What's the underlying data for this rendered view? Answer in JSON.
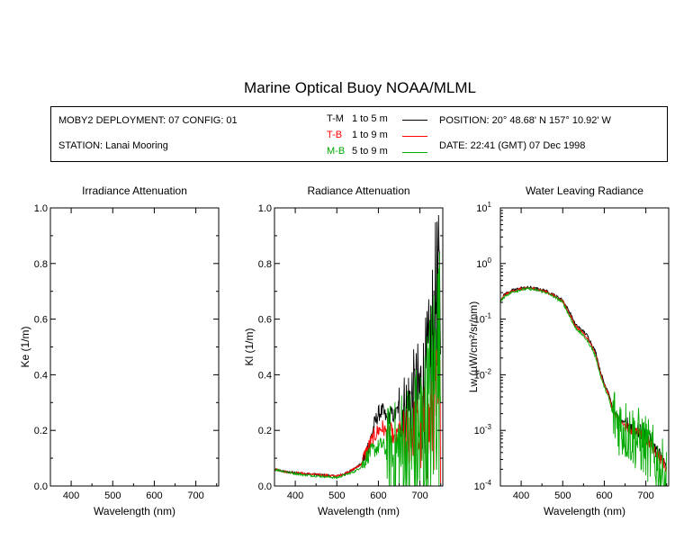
{
  "title": "Marine Optical Buoy NOAA/MLML",
  "info": {
    "deployment": "MOBY2 DEPLOYMENT: 07 CONFIG: 01",
    "station": "STATION: Lanai Mooring",
    "position": "POSITION: 20° 48.68' N   157° 10.92' W",
    "date": "DATE: 22:41 (GMT) 07 Dec 1998",
    "legend": [
      {
        "code": "T-M",
        "range": "1 to 5  m",
        "color": "#000000"
      },
      {
        "code": "T-B",
        "range": "1 to 9  m",
        "color": "#ff0000"
      },
      {
        "code": "M-B",
        "range": "5 to 9  m",
        "color": "#00aa00"
      }
    ]
  },
  "chart_data": [
    {
      "type": "line",
      "title": "Irradiance Attenuation",
      "xlabel": "Wavelength (nm)",
      "ylabel": "Ke  (1/m)",
      "xlim": [
        350,
        755
      ],
      "ylim": [
        0,
        1
      ],
      "xticks": [
        400,
        500,
        600,
        700
      ],
      "yticks": [
        0.0,
        0.2,
        0.4,
        0.6,
        0.8,
        1.0
      ],
      "ytick_labels": [
        "0.0",
        "0.2",
        "0.4",
        "0.6",
        "0.8",
        "1.0"
      ],
      "series": []
    },
    {
      "type": "line",
      "title": "Radiance Attenuation",
      "xlabel": "Wavelength (nm)",
      "ylabel": "Kl  (1/m)",
      "xlim": [
        350,
        755
      ],
      "ylim": [
        0,
        1
      ],
      "xticks": [
        400,
        500,
        600,
        700
      ],
      "yticks": [
        0.0,
        0.2,
        0.4,
        0.6,
        0.8,
        1.0
      ],
      "ytick_labels": [
        "0.0",
        "0.2",
        "0.4",
        "0.6",
        "0.8",
        "1.0"
      ],
      "series": [
        {
          "name": "T-M",
          "color": "#000000",
          "x": [
            350,
            380,
            420,
            460,
            500,
            520,
            540,
            560,
            570,
            580,
            590,
            600,
            610,
            620,
            630,
            640,
            650,
            660,
            670,
            680,
            690,
            700,
            710,
            720,
            730,
            740,
            750
          ],
          "y": [
            0.06,
            0.05,
            0.045,
            0.04,
            0.035,
            0.045,
            0.06,
            0.08,
            0.12,
            0.16,
            0.22,
            0.26,
            0.27,
            0.24,
            0.26,
            0.25,
            0.29,
            0.27,
            0.28,
            0.31,
            0.3,
            0.33,
            0.35,
            0.4,
            0.55,
            0.7,
            0.65
          ],
          "noise": 0.12,
          "noise_from": 650
        },
        {
          "name": "T-B",
          "color": "#ff0000",
          "x": [
            350,
            380,
            420,
            460,
            500,
            520,
            540,
            560,
            570,
            580,
            590,
            600,
            610,
            620,
            630,
            640,
            650,
            660,
            670,
            680,
            690,
            700,
            710,
            720,
            730,
            740,
            750
          ],
          "y": [
            0.06,
            0.05,
            0.045,
            0.04,
            0.035,
            0.045,
            0.06,
            0.08,
            0.12,
            0.15,
            0.18,
            0.2,
            0.21,
            0.19,
            0.2,
            0.16,
            0.21,
            0.17,
            0.18,
            0.2,
            0.17,
            0.2,
            0.18,
            0.2,
            0.25,
            0.3,
            0.25
          ],
          "noise": 0.1,
          "noise_from": 660
        },
        {
          "name": "M-B",
          "color": "#00aa00",
          "x": [
            350,
            380,
            420,
            460,
            500,
            520,
            540,
            560,
            570,
            580,
            590,
            600,
            610,
            620,
            630,
            640,
            650,
            660,
            670,
            680,
            690,
            700,
            710,
            720,
            730,
            740,
            750
          ],
          "y": [
            0.06,
            0.05,
            0.04,
            0.035,
            0.03,
            0.04,
            0.05,
            0.07,
            0.1,
            0.12,
            0.13,
            0.14,
            0.15,
            0.12,
            0.13,
            0.1,
            0.12,
            0.11,
            0.1,
            0.12,
            0.1,
            0.15,
            0.12,
            0.2,
            0.3,
            0.45,
            0.4
          ],
          "noise": 0.16,
          "noise_from": 620
        }
      ]
    },
    {
      "type": "line",
      "title": "Water Leaving Radiance",
      "xlabel": "Wavelength (nm)",
      "ylabel": "Lw  (µW/cm²/sr/nm)",
      "yscale": "log",
      "xlim": [
        350,
        755
      ],
      "ylim": [
        0.0001,
        10
      ],
      "xticks": [
        400,
        500,
        600,
        700
      ],
      "yticks": [
        0.0001,
        0.001,
        0.01,
        0.1,
        1,
        10
      ],
      "ytick_labels": [
        "10",
        "10",
        "10",
        "10",
        "10",
        "10"
      ],
      "ytick_exponents": [
        "-4",
        "-3",
        "-2",
        "-1",
        "0",
        "1"
      ],
      "series": [
        {
          "name": "T-M",
          "color": "#000000",
          "x": [
            350,
            360,
            380,
            400,
            420,
            440,
            460,
            480,
            500,
            520,
            530,
            540,
            550,
            560,
            570,
            580,
            590,
            600,
            610,
            620,
            640,
            660,
            680,
            700,
            720,
            740,
            750
          ],
          "y": [
            0.22,
            0.28,
            0.33,
            0.36,
            0.37,
            0.35,
            0.32,
            0.27,
            0.22,
            0.12,
            0.08,
            0.07,
            0.06,
            0.05,
            0.035,
            0.025,
            0.012,
            0.007,
            0.005,
            0.0025,
            0.0015,
            0.0012,
            0.001,
            0.0008,
            0.0005,
            0.0003,
            0.0002
          ],
          "noise": 0.15,
          "noise_from": 650
        },
        {
          "name": "T-B",
          "color": "#ff0000",
          "x": [
            350,
            360,
            380,
            400,
            420,
            440,
            460,
            480,
            500,
            520,
            530,
            540,
            550,
            560,
            570,
            580,
            590,
            600,
            610,
            620,
            640,
            660,
            680,
            700,
            720,
            740,
            750
          ],
          "y": [
            0.21,
            0.27,
            0.32,
            0.35,
            0.36,
            0.34,
            0.31,
            0.26,
            0.21,
            0.11,
            0.075,
            0.065,
            0.055,
            0.045,
            0.032,
            0.022,
            0.011,
            0.0065,
            0.0045,
            0.0023,
            0.0014,
            0.0011,
            0.0009,
            0.0007,
            0.00045,
            0.00028,
            0.0002
          ],
          "noise": 0.1,
          "noise_from": 650
        },
        {
          "name": "M-B",
          "color": "#00aa00",
          "x": [
            350,
            360,
            380,
            400,
            420,
            440,
            460,
            480,
            500,
            520,
            530,
            540,
            550,
            560,
            570,
            580,
            590,
            600,
            610,
            620,
            640,
            660,
            680,
            700,
            720,
            740,
            750
          ],
          "y": [
            0.2,
            0.26,
            0.31,
            0.34,
            0.35,
            0.33,
            0.3,
            0.25,
            0.2,
            0.1,
            0.07,
            0.06,
            0.05,
            0.04,
            0.03,
            0.02,
            0.01,
            0.006,
            0.004,
            0.002,
            0.0012,
            0.0009,
            0.0007,
            0.0005,
            0.0003,
            0.00018,
            0.00012
          ],
          "noise": 0.6,
          "noise_from": 620
        }
      ]
    }
  ]
}
